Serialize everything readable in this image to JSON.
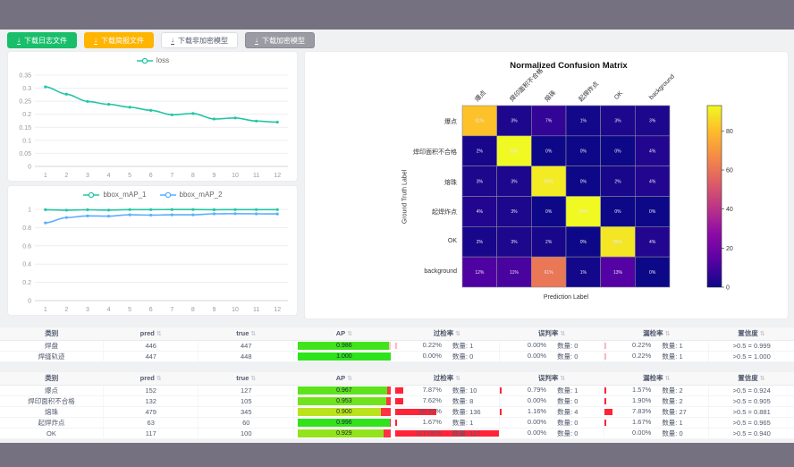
{
  "window": {
    "chrome_color": "#767180",
    "content_bg": "#f0f1f3"
  },
  "toolbar": {
    "buttons": [
      {
        "label": "下载日志文件",
        "bg": "#19be6b",
        "fg": "#ffffff",
        "border": "#19be6b"
      },
      {
        "label": "下载简报文件",
        "bg": "#ffb400",
        "fg": "#ffffff",
        "border": "#ffb400"
      },
      {
        "label": "下载非加密模型",
        "bg": "#ffffff",
        "fg": "#515a6e",
        "border": "#dcdee2"
      },
      {
        "label": "下载加密模型",
        "bg": "#9a9ba3",
        "fg": "#ffffff",
        "border": "#8a8b93"
      }
    ]
  },
  "chart_data": [
    {
      "type": "line",
      "title": "",
      "legend": [
        "loss"
      ],
      "x": [
        1,
        2,
        3,
        4,
        5,
        6,
        7,
        8,
        9,
        10,
        11,
        12
      ],
      "series": [
        {
          "name": "loss",
          "color": "#23c6a4",
          "values": [
            0.305,
            0.277,
            0.249,
            0.238,
            0.227,
            0.215,
            0.198,
            0.203,
            0.182,
            0.186,
            0.174,
            0.17
          ]
        }
      ],
      "ylim": [
        0,
        0.35
      ],
      "y_ticks": [
        0,
        0.05,
        0.1,
        0.15,
        0.2,
        0.25,
        0.3,
        0.35
      ],
      "grid": true,
      "legend_position": "top"
    },
    {
      "type": "line",
      "title": "",
      "legend": [
        "bbox_mAP_1",
        "bbox_mAP_2"
      ],
      "x": [
        1,
        2,
        3,
        4,
        5,
        6,
        7,
        8,
        9,
        10,
        11,
        12
      ],
      "series": [
        {
          "name": "bbox_mAP_1",
          "color": "#23c6a4",
          "values": [
            0.996,
            0.991,
            0.995,
            0.992,
            0.997,
            0.997,
            0.998,
            0.998,
            0.996,
            0.997,
            0.997,
            0.997
          ]
        },
        {
          "name": "bbox_mAP_2",
          "color": "#5cadff",
          "values": [
            0.852,
            0.91,
            0.928,
            0.925,
            0.94,
            0.937,
            0.94,
            0.94,
            0.951,
            0.953,
            0.951,
            0.95
          ]
        }
      ],
      "ylim": [
        0,
        1
      ],
      "y_ticks": [
        0,
        0.2,
        0.4,
        0.6,
        0.8,
        1
      ],
      "grid": true,
      "legend_position": "top"
    },
    {
      "type": "heatmap",
      "title": "Normalized Confusion Matrix",
      "xlabel": "Prediction Label",
      "ylabel": "Ground Truth Label",
      "labels": [
        "爆点",
        "焊印面积不合格",
        "熔珠",
        "起焊炸点",
        "OK",
        "background"
      ],
      "rows": [
        [
          81,
          3,
          7,
          1,
          3,
          3
        ],
        [
          2,
          93,
          0,
          0,
          0,
          4
        ],
        [
          3,
          3,
          90,
          0,
          2,
          4
        ],
        [
          4,
          3,
          0,
          93,
          0,
          0
        ],
        [
          2,
          3,
          2,
          0,
          89,
          4
        ],
        [
          12,
          11,
          61,
          1,
          13,
          0
        ]
      ],
      "unit": "%",
      "vmin": 0,
      "vmax": 93,
      "colorbar_ticks": [
        0,
        20,
        40,
        60,
        80
      ],
      "colormap": "plasma"
    }
  ],
  "tables": {
    "count_label": "数量",
    "headers": [
      "类别",
      "pred",
      "true",
      "AP",
      "过检率",
      "误判率",
      "漏检率",
      "置信度"
    ],
    "sort_icon": "⇅",
    "groups": [
      {
        "rate_bar_color": "#ffb6c4",
        "ap_rest_color": "#ffc2cc",
        "rows": [
          {
            "category": "焊盘",
            "pred": 446,
            "true": 447,
            "ap": 0.986,
            "over": {
              "rate": 0.22,
              "count": 1
            },
            "mis": {
              "rate": 0.0,
              "count": 0
            },
            "miss": {
              "rate": 0.22,
              "count": 1
            },
            "conf": ">0.5 = 0.999"
          },
          {
            "category": "焊缝轨迹",
            "pred": 447,
            "true": 448,
            "ap": 1.0,
            "over": {
              "rate": 0.0,
              "count": 0
            },
            "mis": {
              "rate": 0.0,
              "count": 0
            },
            "miss": {
              "rate": 0.22,
              "count": 1
            },
            "conf": ">0.5 = 1.000"
          }
        ]
      },
      {
        "rate_bar_color": "#ff2438",
        "ap_rest_color": "#ff3344",
        "rows": [
          {
            "category": "爆点",
            "pred": 152,
            "true": 127,
            "ap": 0.967,
            "over": {
              "rate": 7.87,
              "count": 10
            },
            "mis": {
              "rate": 0.79,
              "count": 1
            },
            "miss": {
              "rate": 1.57,
              "count": 2
            },
            "conf": ">0.5 = 0.924"
          },
          {
            "category": "焊印面积不合格",
            "pred": 132,
            "true": 105,
            "ap": 0.953,
            "over": {
              "rate": 7.62,
              "count": 8
            },
            "mis": {
              "rate": 0.0,
              "count": 0
            },
            "miss": {
              "rate": 1.9,
              "count": 2
            },
            "conf": ">0.5 = 0.905"
          },
          {
            "category": "熔珠",
            "pred": 479,
            "true": 345,
            "ap": 0.9,
            "over": {
              "rate": 39.42,
              "count": 136
            },
            "mis": {
              "rate": 1.16,
              "count": 4
            },
            "miss": {
              "rate": 7.83,
              "count": 27
            },
            "conf": ">0.5 = 0.881"
          },
          {
            "category": "起焊炸点",
            "pred": 63,
            "true": 60,
            "ap": 0.996,
            "over": {
              "rate": 1.67,
              "count": 1
            },
            "mis": {
              "rate": 0.0,
              "count": 0
            },
            "miss": {
              "rate": 1.67,
              "count": 1
            },
            "conf": ">0.5 = 0.965"
          },
          {
            "category": "OK",
            "pred": 117,
            "true": 100,
            "ap": 0.929,
            "over": {
              "rate": 117.0,
              "count": 117
            },
            "mis": {
              "rate": 0.0,
              "count": 0
            },
            "miss": {
              "rate": 0.0,
              "count": 0
            },
            "conf": ">0.5 = 0.940"
          }
        ]
      }
    ]
  }
}
